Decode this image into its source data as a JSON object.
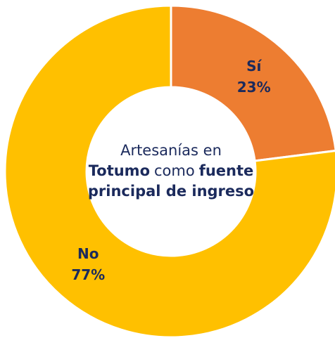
{
  "chart_data": {
    "type": "donut",
    "categories": [
      "Sí",
      "No"
    ],
    "values": [
      23,
      77
    ],
    "value_labels": [
      "23%",
      "77%"
    ],
    "colors": [
      "#ed7d31",
      "#ffc000"
    ],
    "center_text": [
      [
        {
          "text": "Artesanías en",
          "bold": false
        }
      ],
      [
        {
          "text": "Totumo",
          "bold": true
        },
        {
          "text": "como",
          "bold": false
        },
        {
          "text": "fuente",
          "bold": true
        }
      ],
      [
        {
          "text": "principal de ingreso",
          "bold": true
        }
      ]
    ]
  }
}
